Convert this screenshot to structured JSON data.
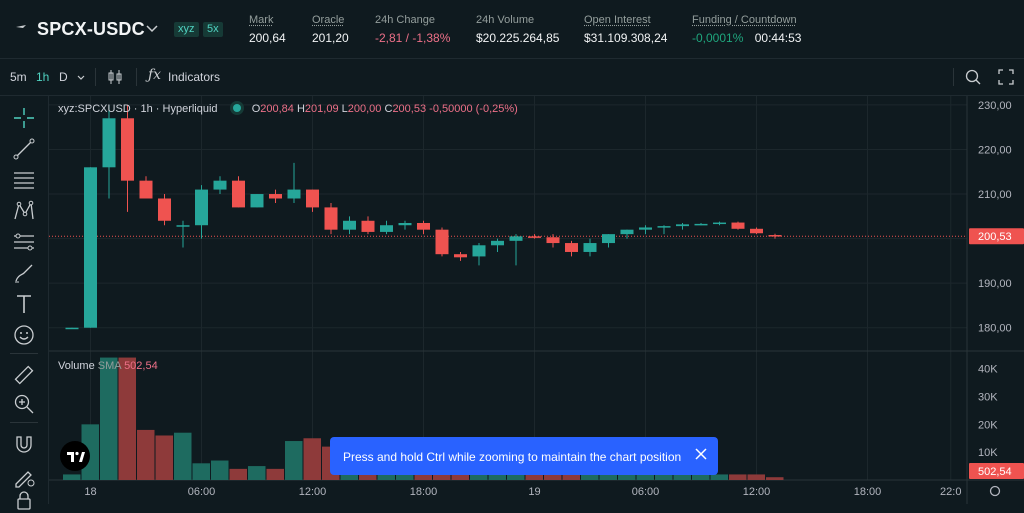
{
  "header": {
    "pair": "SPCX-USDC",
    "badges": [
      "xyz",
      "5x"
    ],
    "stats": [
      {
        "label": "Mark",
        "value": "200,64",
        "tone": "normal"
      },
      {
        "label": "Oracle",
        "value": "201,20",
        "tone": "normal"
      },
      {
        "label": "24h Change",
        "value": "-2,81 / -1,38%",
        "tone": "neg"
      },
      {
        "label": "24h Volume",
        "value": "$20.225.264,85",
        "tone": "normal"
      },
      {
        "label": "Open Interest",
        "value": "$31.109.308,24",
        "tone": "normal"
      },
      {
        "label": "Funding / Countdown",
        "value": "-0,0001%",
        "value2": "00:44:53",
        "tone": "pos"
      }
    ]
  },
  "toolbar": {
    "intervals": [
      "5m",
      "1h",
      "D"
    ],
    "active_interval": "1h",
    "indicators_label": "Indicators"
  },
  "legend": {
    "symbol": "xyz:SPCXUSD · 1h · Hyperliquid",
    "o_label": "O",
    "o": "200,84",
    "h_label": "H",
    "h": "201,09",
    "l_label": "L",
    "l": "200,00",
    "c_label": "C",
    "c": "200,53",
    "change": "-0,50000 (-0,25%)"
  },
  "volume_legend": {
    "label": "Volume",
    "sma_label": "SMA",
    "sma_value": "502,54"
  },
  "toast": {
    "message": "Press and hold Ctrl while zooming to maintain the chart position"
  },
  "colors": {
    "up": "#26a69a",
    "down": "#ef5350",
    "accent": "#50d2c1",
    "bg": "#0f1a1f"
  },
  "chart_data": {
    "type": "candlestick",
    "price_axis": {
      "ticks": [
        "230,00",
        "220,00",
        "210,00",
        "200,00",
        "190,00",
        "180,00"
      ],
      "tick_values": [
        230,
        220,
        210,
        200,
        190,
        180
      ],
      "range": [
        175,
        232
      ],
      "last_price_label": "200,53",
      "last_price": 200.53
    },
    "volume_axis": {
      "ticks": [
        "40K",
        "30K",
        "20K",
        "10K"
      ],
      "tick_values": [
        40000,
        30000,
        20000,
        10000
      ],
      "range": [
        0,
        46000
      ],
      "sma_label": "502,54"
    },
    "time_axis": {
      "labels": [
        "18",
        "06:00",
        "12:00",
        "18:00",
        "19",
        "06:00",
        "12:00",
        "18:00",
        "22:0"
      ],
      "label_index": [
        1,
        7,
        13,
        19,
        25,
        31,
        37,
        43,
        47.5
      ]
    },
    "candles": [
      {
        "o": 180.0,
        "h": 180.0,
        "l": 179.8,
        "c": 180.0,
        "v": 2000
      },
      {
        "o": 180.0,
        "h": 216.0,
        "l": 180.0,
        "c": 216.0,
        "v": 20000
      },
      {
        "o": 216.0,
        "h": 230.0,
        "l": 209.0,
        "c": 227.0,
        "v": 44000
      },
      {
        "o": 227.0,
        "h": 230.0,
        "l": 206.0,
        "c": 213.0,
        "v": 44000
      },
      {
        "o": 213.0,
        "h": 214.0,
        "l": 209.0,
        "c": 209.0,
        "v": 18000
      },
      {
        "o": 209.0,
        "h": 210.0,
        "l": 203.0,
        "c": 204.0,
        "v": 16000
      },
      {
        "o": 203.0,
        "h": 204.0,
        "l": 198.0,
        "c": 203.0,
        "v": 17000
      },
      {
        "o": 203.0,
        "h": 212.0,
        "l": 200.0,
        "c": 211.0,
        "v": 6000
      },
      {
        "o": 211.0,
        "h": 214.0,
        "l": 210.0,
        "c": 213.0,
        "v": 7000
      },
      {
        "o": 213.0,
        "h": 214.0,
        "l": 207.0,
        "c": 207.0,
        "v": 4000
      },
      {
        "o": 207.0,
        "h": 210.0,
        "l": 207.0,
        "c": 210.0,
        "v": 5000
      },
      {
        "o": 210.0,
        "h": 211.0,
        "l": 208.0,
        "c": 209.0,
        "v": 4000
      },
      {
        "o": 209.0,
        "h": 217.0,
        "l": 208.0,
        "c": 211.0,
        "v": 14000
      },
      {
        "o": 211.0,
        "h": 211.0,
        "l": 206.0,
        "c": 207.0,
        "v": 15000
      },
      {
        "o": 207.0,
        "h": 208.0,
        "l": 201.0,
        "c": 202.0,
        "v": 12000
      },
      {
        "o": 202.0,
        "h": 205.0,
        "l": 201.0,
        "c": 204.0,
        "v": 9000
      },
      {
        "o": 204.0,
        "h": 205.0,
        "l": 201.0,
        "c": 201.5,
        "v": 7000
      },
      {
        "o": 201.5,
        "h": 204.0,
        "l": 201.0,
        "c": 203.0,
        "v": 8000
      },
      {
        "o": 203.0,
        "h": 204.0,
        "l": 202.0,
        "c": 203.5,
        "v": 6000
      },
      {
        "o": 203.5,
        "h": 204.0,
        "l": 201.0,
        "c": 202.0,
        "v": 8000
      },
      {
        "o": 202.0,
        "h": 202.5,
        "l": 196.0,
        "c": 196.5,
        "v": 14000
      },
      {
        "o": 196.5,
        "h": 197.0,
        "l": 195.0,
        "c": 195.8,
        "v": 8000
      },
      {
        "o": 196.0,
        "h": 199.0,
        "l": 194.0,
        "c": 198.5,
        "v": 6000
      },
      {
        "o": 198.5,
        "h": 200.0,
        "l": 197.0,
        "c": 199.5,
        "v": 5000
      },
      {
        "o": 199.5,
        "h": 201.0,
        "l": 194.0,
        "c": 200.5,
        "v": 4000
      },
      {
        "o": 200.5,
        "h": 201.0,
        "l": 200.0,
        "c": 200.3,
        "v": 3000
      },
      {
        "o": 200.3,
        "h": 201.0,
        "l": 198.0,
        "c": 199.0,
        "v": 4000
      },
      {
        "o": 199.0,
        "h": 199.5,
        "l": 196.0,
        "c": 197.0,
        "v": 5000
      },
      {
        "o": 197.0,
        "h": 200.0,
        "l": 196.0,
        "c": 199.0,
        "v": 3000
      },
      {
        "o": 199.0,
        "h": 201.0,
        "l": 198.0,
        "c": 201.0,
        "v": 3000
      },
      {
        "o": 201.0,
        "h": 202.0,
        "l": 200.0,
        "c": 202.0,
        "v": 2000
      },
      {
        "o": 202.0,
        "h": 203.0,
        "l": 201.0,
        "c": 202.5,
        "v": 2000
      },
      {
        "o": 202.5,
        "h": 203.0,
        "l": 201.0,
        "c": 202.8,
        "v": 2000
      },
      {
        "o": 202.8,
        "h": 203.5,
        "l": 202.0,
        "c": 203.2,
        "v": 2000
      },
      {
        "o": 203.2,
        "h": 203.5,
        "l": 203.0,
        "c": 203.3,
        "v": 2000
      },
      {
        "o": 203.4,
        "h": 203.8,
        "l": 203.0,
        "c": 203.6,
        "v": 2000
      },
      {
        "o": 203.6,
        "h": 203.8,
        "l": 202.0,
        "c": 202.2,
        "v": 2000
      },
      {
        "o": 202.2,
        "h": 202.5,
        "l": 201.0,
        "c": 201.2,
        "v": 2000
      },
      {
        "o": 200.8,
        "h": 201.1,
        "l": 200.0,
        "c": 200.5,
        "v": 1000
      }
    ]
  }
}
